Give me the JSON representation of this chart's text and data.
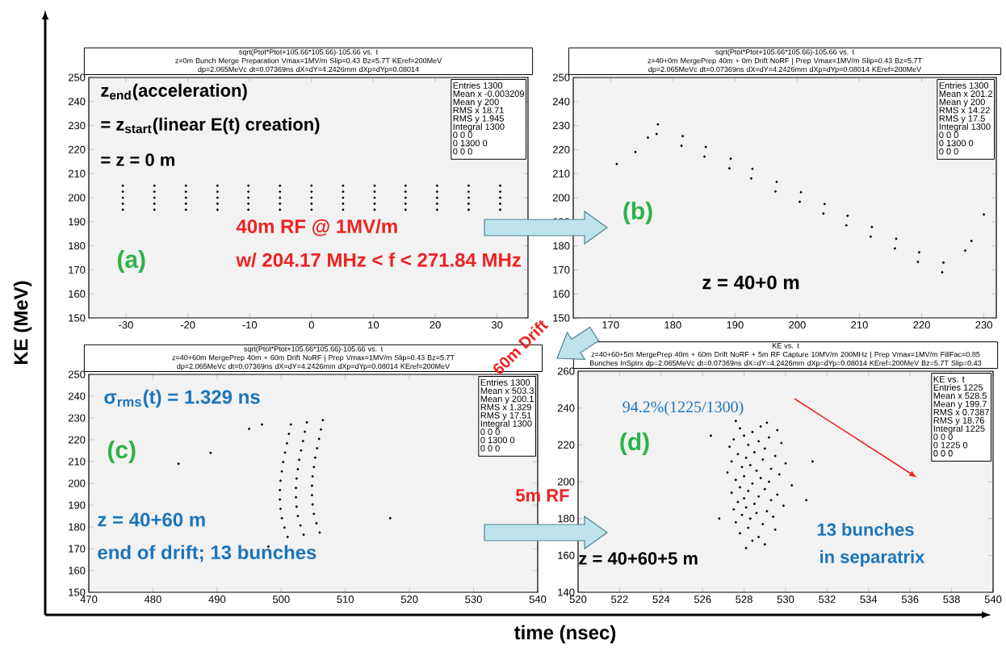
{
  "chart_data": [
    {
      "type": "scatter",
      "title": "sqrt(Ptot*Ptot+105.66*105.66)-105.66 vs. t",
      "subtitle": "z=0m Bunch Merge Preparation Vmax=1MV/m Slip=0.43 Bz=5.7T KEref=200MeV dp=2.065MeVc dt=0.07369ns dX=dY=4.2426mm dXp=dYp=0.08014",
      "ylabel": "KE (MeV)",
      "xlim": [
        -36,
        35
      ],
      "ylim": [
        150,
        250
      ],
      "xticks": [
        -30,
        -20,
        -10,
        0,
        10,
        20,
        30
      ],
      "yticks": [
        150,
        160,
        170,
        180,
        190,
        200,
        210,
        220,
        230,
        240,
        250
      ],
      "marker": "circle",
      "series": [
        {
          "color": "#000000",
          "x": [
            -30.5,
            -30.5,
            -30.5,
            -30.5,
            -30.5,
            -25.4,
            -25.4,
            -25.4,
            -25.4,
            -25.4,
            -20.3,
            -20.3,
            -20.3,
            -20.3,
            -20.3,
            -15.2,
            -15.2,
            -15.2,
            -15.2,
            -15.2,
            -10.2,
            -10.2,
            -10.2,
            -10.2,
            -10.2,
            -5.1,
            -5.1,
            -5.1,
            -5.1,
            -5.1,
            0,
            0,
            0,
            0,
            0,
            5.1,
            5.1,
            5.1,
            5.1,
            5.1,
            10.2,
            10.2,
            10.2,
            10.2,
            10.2,
            15.2,
            15.2,
            15.2,
            15.2,
            15.2,
            20.3,
            20.3,
            20.3,
            20.3,
            20.3,
            25.4,
            25.4,
            25.4,
            25.4,
            25.4,
            30.5,
            30.5,
            30.5,
            30.5,
            30.5
          ],
          "values": [
            195,
            197.5,
            200,
            202.5,
            205,
            195,
            197.5,
            200,
            202.5,
            205,
            195,
            197.5,
            200,
            202.5,
            205,
            195,
            197.5,
            200,
            202.5,
            205,
            195,
            197.5,
            200,
            202.5,
            205,
            195,
            197.5,
            200,
            202.5,
            205,
            195,
            197.5,
            200,
            202.5,
            205,
            195,
            197.5,
            200,
            202.5,
            205,
            195,
            197.5,
            200,
            202.5,
            205,
            195,
            197.5,
            200,
            202.5,
            205,
            195,
            197.5,
            200,
            202.5,
            205,
            195,
            197.5,
            200,
            202.5,
            205,
            195,
            197.5,
            200,
            202.5,
            205
          ]
        }
      ],
      "annotations": [
        "z$_{end}$(acceleration)",
        "= z$_{start}$(linear E(t) creation)",
        "= z = 0 m",
        "(a)",
        "40m RF @ 1MV/m",
        "w/ 204.17 MHz < f < 271.84 MHz",
        "Entries 1300",
        "Mean x -0.003209",
        "Mean y 200",
        "RMS x 18.71",
        "RMS y 1.945",
        "Integral 1300",
        "0 0 0",
        "0 1300 0",
        "0 0 0"
      ]
    },
    {
      "type": "scatter",
      "title": "sqrt(Ptot*Ptot+105.66*105.66)-105.66 vs. t",
      "subtitle": "z=40+0m MergePrep 40m + 0m Drift NoRF | Prep Vmax=1MV/m Slip=0.43 Bz=5.7T dp=2.065MeVc dt=0.07369ns dX=dY=4.2426mm dXp=dYp=0.08014 KEref=200MeV",
      "xlim": [
        164,
        232
      ],
      "ylim": [
        150,
        250
      ],
      "xticks": [
        170,
        180,
        190,
        200,
        210,
        220,
        230
      ],
      "yticks": [
        150,
        160,
        170,
        180,
        190,
        200,
        210,
        220,
        230,
        240,
        250
      ],
      "marker": "circle",
      "series": [
        {
          "color": "#000000",
          "x": [
            177.4,
            177.6,
            181.4,
            181.6,
            185.1,
            185.3,
            189.1,
            189.3,
            192.6,
            192.8,
            196.5,
            196.7,
            200.4,
            200.6,
            204.2,
            204.4,
            207.9,
            208.1,
            211.8,
            212,
            215.7,
            215.9,
            219.4,
            219.6,
            223.3,
            223.5,
            176,
            174,
            171,
            230,
            228,
            227
          ],
          "values": [
            226.5,
            230.5,
            221.6,
            225.6,
            217.1,
            221.1,
            212.2,
            216.2,
            208,
            212,
            202.6,
            206.6,
            198.3,
            202.3,
            193.4,
            197.4,
            188.5,
            192.5,
            183.8,
            187.8,
            178.9,
            182.9,
            173.3,
            177.3,
            169,
            173,
            225,
            219,
            214,
            193,
            182,
            178
          ]
        }
      ],
      "annotations": [
        "(b)",
        "z = 40+0 m",
        "Entries 1300",
        "Mean x 201.2",
        "Mean y 200",
        "RMS x 14.22",
        "RMS y 17.5",
        "Integral 1300",
        "0 0 0",
        "0 1300 0",
        "0 0 0"
      ]
    },
    {
      "type": "scatter",
      "title": "sqrt(Ptot*Ptot+105.66*105.66)-105.66 vs. t",
      "subtitle": "z=40+60m MergePrep 40m + 60m Drift NoRF | Prep Vmax=1MV/m Slip=0.43 Bz=5.7T dp=2.065MeVc dt=0.07369ns dX=dY=4.2426mm dXp=dYp=0.08014 KEref=200MeV",
      "xlim": [
        470,
        540
      ],
      "ylim": [
        150,
        250
      ],
      "xticks": [
        470,
        480,
        490,
        500,
        510,
        520,
        530,
        540
      ],
      "yticks": [
        150,
        160,
        170,
        180,
        190,
        200,
        210,
        220,
        230,
        240,
        250
      ],
      "marker": "circle",
      "series": [
        {
          "color": "#000000",
          "x": [
            501.5,
            504,
            506.5,
            501.2,
            503.7,
            506.2,
            500.9,
            503.4,
            505.9,
            500.6,
            503.1,
            505.6,
            500.3,
            502.8,
            505.3,
            500.1,
            502.6,
            505.1,
            499.9,
            502.4,
            504.9,
            499.8,
            502.3,
            504.8,
            499.8,
            502.3,
            504.8,
            499.9,
            502.4,
            504.9,
            500.1,
            502.6,
            505.1,
            500.5,
            503,
            505.5,
            501,
            503.5,
            506,
            497,
            495,
            489,
            484,
            498,
            517
          ],
          "values": [
            227,
            228,
            229,
            222.7,
            223.7,
            224.7,
            218.4,
            219.4,
            220.4,
            214.1,
            215.1,
            216.1,
            209.8,
            210.8,
            211.8,
            205.5,
            206.5,
            207.5,
            201.2,
            202.2,
            203.2,
            196.9,
            197.9,
            198.9,
            192.6,
            193.6,
            194.6,
            188.3,
            189.3,
            190.3,
            184,
            185,
            186,
            179.7,
            180.7,
            181.7,
            175.4,
            176.4,
            177.4,
            227,
            225,
            214,
            209,
            171,
            184
          ]
        }
      ],
      "annotations": [
        "σ$_{rms}$(t) = 1.329 ns",
        "(c)",
        "z = 40+60 m",
        "end of drift; 13 bunches",
        "60m Drift",
        "Entries 1300",
        "Mean x 503.3",
        "Mean y 200.1",
        "RMS x 1.329",
        "RMS y 17.51",
        "Integral 1300",
        "0 0 0",
        "0 1300 0",
        "0 0 0"
      ]
    },
    {
      "type": "scatter",
      "title": "KE vs. t",
      "subtitle": "z=40+60+5m MergePrep 40m + 60m Drift NoRF + 5m RF Capture 10MV/m 200MHz | Prep Vmax=1MV/m FillFac=0.85 Bunches InSptrx dp=2.065MeVc dt=0.07369ns dX=dY=4.2426mm dXp=dYp=0.08014 KEref=200MeV Bz=5.7T Slip=0.43",
      "xlabel": "time (nsec)",
      "xlim": [
        520,
        540
      ],
      "ylim": [
        140,
        260
      ],
      "xticks": [
        520,
        522,
        524,
        526,
        528,
        530,
        532,
        534,
        536,
        538,
        540
      ],
      "yticks": [
        140,
        160,
        180,
        200,
        220,
        240,
        260
      ],
      "marker": "circle",
      "series": [
        {
          "color": "#000000",
          "x": [
            527.6,
            529.1,
            528.8,
            527.8,
            529.6,
            528.4,
            528.0,
            529.2,
            527.5,
            528.7,
            529.8,
            528.2,
            527.3,
            529.0,
            528.5,
            527.7,
            529.5,
            528.1,
            528.9,
            527.4,
            530.0,
            528.3,
            527.9,
            529.3,
            528.6,
            527.2,
            529.7,
            528.0,
            528.8,
            527.6,
            529.2,
            528.4,
            530.3,
            527.8,
            529.0,
            528.2,
            527.4,
            529.6,
            528.7,
            528.0,
            529.3,
            527.7,
            528.5,
            529.9,
            528.1,
            527.5,
            529.1,
            528.6,
            527.9,
            529.4,
            528.3,
            527.6,
            528.9,
            528.2,
            529.5,
            527.8,
            528.7,
            528.4,
            529.0,
            528.1,
            531.3,
            526.4,
            531.0,
            526.8
          ],
          "values": [
            233,
            232,
            230,
            229,
            228,
            227,
            225,
            224,
            223,
            222,
            221,
            220,
            219,
            218,
            216,
            215,
            214,
            213,
            212,
            211,
            210,
            209,
            208,
            207,
            206,
            205,
            204,
            203,
            202,
            201,
            200,
            199,
            198,
            197,
            196,
            195,
            194,
            193,
            192,
            191,
            190,
            189,
            188,
            187,
            186,
            185,
            184,
            183,
            182,
            181,
            180,
            178,
            177,
            175,
            174,
            172,
            170,
            168,
            166,
            164,
            211,
            225,
            190,
            180
          ]
        }
      ],
      "annotations": [
        "94.2%(1225/1300)",
        "(d)",
        "5m RF",
        "z = 40+60+5 m",
        "13 bunches",
        "in separatrix",
        "KE vs. t",
        "Entries 1225",
        "Mean x 528.5",
        "Mean y 199.7",
        "RMS x 0.7387",
        "RMS y 18.76",
        "Integral 1225",
        "0 0 0",
        "0 1225 0",
        "0 0 0"
      ]
    }
  ]
}
